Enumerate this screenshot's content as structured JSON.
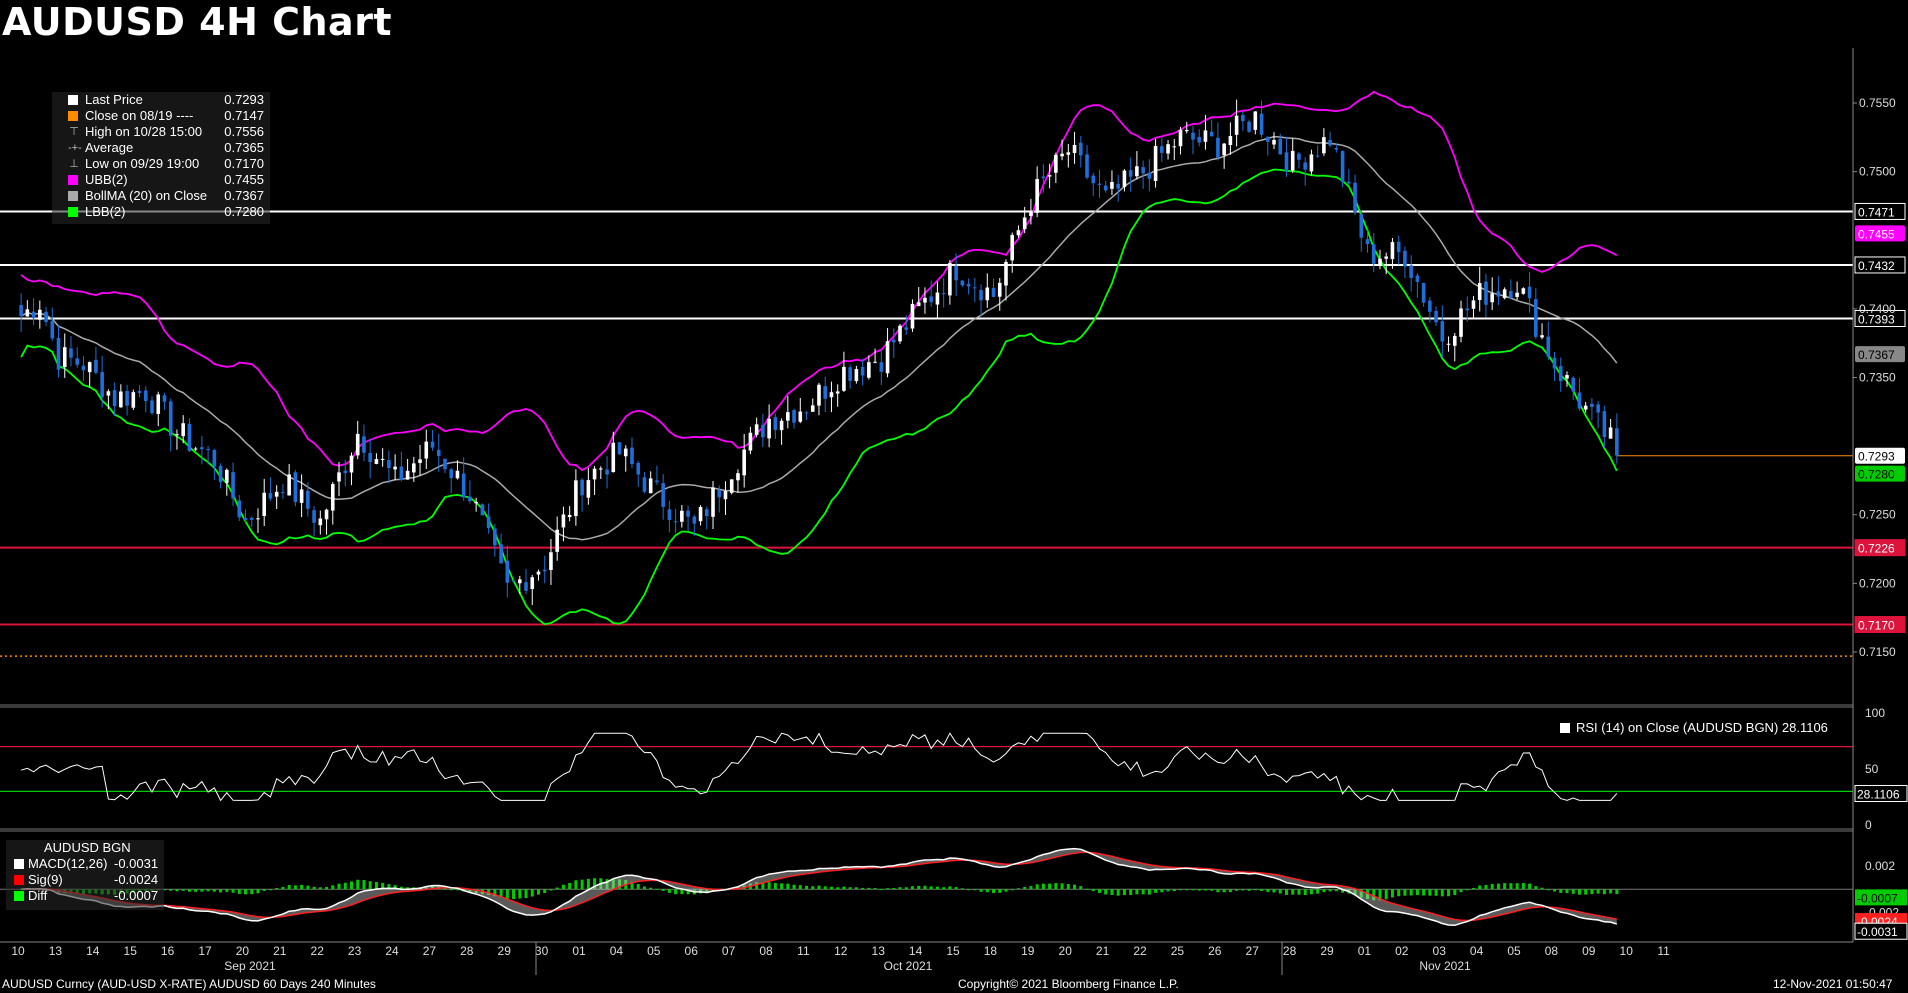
{
  "header": {
    "title": "AUDUSD 4H Chart"
  },
  "legend": {
    "items": [
      {
        "label": "Last Price",
        "value": "0.7293",
        "swatch": "#ffffff",
        "symbol": ""
      },
      {
        "label": "Close on 08/19 ----",
        "value": "0.7147",
        "swatch": "#ff8c00",
        "symbol": ""
      },
      {
        "label": "High on 10/28 15:00",
        "value": "0.7556",
        "swatch": "",
        "symbol": "⊤"
      },
      {
        "label": "Average",
        "value": "0.7365",
        "swatch": "",
        "symbol": "-+-"
      },
      {
        "label": "Low on 09/29 19:00",
        "value": "0.7170",
        "swatch": "",
        "symbol": "⊥"
      },
      {
        "label": "UBB(2)",
        "value": "0.7455",
        "swatch": "#ff00ff",
        "symbol": ""
      },
      {
        "label": "BollMA (20)  on Close",
        "value": "0.7367",
        "swatch": "#aaaaaa",
        "symbol": ""
      },
      {
        "label": "LBB(2)",
        "value": "0.7280",
        "swatch": "#00ff00",
        "symbol": ""
      }
    ]
  },
  "rsi_legend": {
    "text": "RSI (14)   on Close (AUDUSD BGN) 28.1106"
  },
  "macd_legend": {
    "header": "AUDUSD BGN",
    "items": [
      {
        "label": "MACD(12,26)",
        "value": "-0.0031",
        "swatch": "#ffffff"
      },
      {
        "label": "Sig(9)",
        "value": "-0.0024",
        "swatch": "#ff0000"
      },
      {
        "label": "Diff",
        "value": "-0.0007",
        "swatch": "#00ff00"
      }
    ]
  },
  "footer": {
    "left": "AUDUSD Curncy (AUD-USD X-RATE) AUDUSD 60 Days 240 Minutes",
    "center": "Copyright© 2021 Bloomberg Finance L.P.",
    "right": "12-Nov-2021 01:50:47"
  },
  "colors": {
    "up": "#ffffff",
    "down": "#1e6fd9",
    "ubb": "#ff00ff",
    "lbb": "#00ff00",
    "ma": "#aaaaaa",
    "support": "#dc143c",
    "resistance": "#ffffff",
    "close_ref": "#ff8c00"
  },
  "chart_data": [
    {
      "type": "candlestick",
      "panel": "price",
      "title": "AUDUSD 4H Chart",
      "ylim": [
        0.7115,
        0.7585
      ],
      "y_ticks": [
        "0.7550",
        "0.7500",
        "0.7400",
        "0.7350",
        "0.7250",
        "0.7200",
        "0.7150"
      ],
      "x_date_labels": [
        "10",
        "13",
        "14",
        "15",
        "16",
        "17",
        "20",
        "21",
        "22",
        "23",
        "24",
        "27",
        "28",
        "29",
        "30",
        "01",
        "04",
        "05",
        "06",
        "07",
        "08",
        "11",
        "12",
        "13",
        "14",
        "15",
        "18",
        "19",
        "20",
        "21",
        "22",
        "25",
        "26",
        "27",
        "28",
        "29",
        "01",
        "02",
        "03",
        "04",
        "05",
        "08",
        "09",
        "10",
        "11"
      ],
      "month_labels": [
        "Sep 2021",
        "Oct 2021",
        "Nov 2021"
      ],
      "candles_per_day": 6,
      "close_anchors": [
        [
          0,
          0.7395
        ],
        [
          3,
          0.7405
        ],
        [
          6,
          0.7365
        ],
        [
          10,
          0.736
        ],
        [
          15,
          0.7335
        ],
        [
          20,
          0.734
        ],
        [
          25,
          0.731
        ],
        [
          31,
          0.729
        ],
        [
          36,
          0.7245
        ],
        [
          42,
          0.7275
        ],
        [
          48,
          0.7245
        ],
        [
          54,
          0.731
        ],
        [
          60,
          0.7275
        ],
        [
          66,
          0.73
        ],
        [
          72,
          0.7265
        ],
        [
          78,
          0.7195
        ],
        [
          84,
          0.7215
        ],
        [
          90,
          0.7275
        ],
        [
          96,
          0.7295
        ],
        [
          102,
          0.7265
        ],
        [
          108,
          0.724
        ],
        [
          114,
          0.7285
        ],
        [
          120,
          0.732
        ],
        [
          126,
          0.733
        ],
        [
          132,
          0.7355
        ],
        [
          138,
          0.7365
        ],
        [
          144,
          0.74
        ],
        [
          150,
          0.743
        ],
        [
          156,
          0.741
        ],
        [
          162,
          0.748
        ],
        [
          168,
          0.7515
        ],
        [
          174,
          0.748
        ],
        [
          180,
          0.75
        ],
        [
          186,
          0.7525
        ],
        [
          192,
          0.752
        ],
        [
          198,
          0.754
        ],
        [
          204,
          0.7505
        ],
        [
          210,
          0.7525
        ],
        [
          216,
          0.744
        ],
        [
          222,
          0.744
        ],
        [
          228,
          0.738
        ],
        [
          234,
          0.741
        ],
        [
          240,
          0.742
        ],
        [
          246,
          0.736
        ],
        [
          252,
          0.732
        ],
        [
          257,
          0.7293
        ]
      ],
      "horizontal_levels": [
        {
          "value": 0.7471,
          "label": "0.7471",
          "color": "#ffffff"
        },
        {
          "value": 0.7432,
          "label": "0.7432",
          "color": "#ffffff"
        },
        {
          "value": 0.7393,
          "label": "0.7393",
          "color": "#ffffff"
        },
        {
          "value": 0.7226,
          "label": "0.7226",
          "color": "#dc143c"
        },
        {
          "value": 0.717,
          "label": "0.7170",
          "color": "#dc143c"
        }
      ],
      "close_reference": {
        "value": 0.7147
      },
      "price_tags": [
        {
          "value": 0.7455,
          "label": "0.7455",
          "bg": "#ff00ff",
          "fg": "#ffffff"
        },
        {
          "value": 0.7367,
          "label": "0.7367",
          "bg": "#888888",
          "fg": "#000000"
        },
        {
          "value": 0.7293,
          "label": "0.7293",
          "bg": "#ffffff",
          "fg": "#000000"
        },
        {
          "value": 0.728,
          "label": "0.7280",
          "bg": "#00cc00",
          "fg": "#000000"
        }
      ],
      "last_price": 0.7293,
      "high": 0.7556,
      "low": 0.717,
      "average": 0.7365,
      "bollinger": {
        "period": 20,
        "ubb": 0.7455,
        "ma": 0.7367,
        "lbb": 0.728
      }
    },
    {
      "type": "line",
      "panel": "rsi",
      "ylim": [
        0,
        100
      ],
      "y_ticks": [
        "100",
        "50",
        "0"
      ],
      "levels": [
        70,
        30
      ],
      "last_value": "28.1106"
    },
    {
      "type": "line+histogram",
      "panel": "macd",
      "y_ticks": [
        "0.002",
        "-0.002"
      ],
      "macd": "-0.0031",
      "signal": "-0.0024",
      "diff": "-0.0007"
    }
  ]
}
